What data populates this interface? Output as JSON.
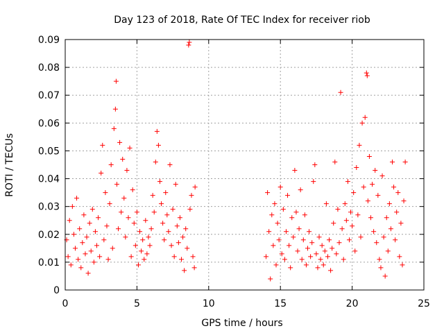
{
  "chart_data": {
    "type": "scatter",
    "title": "Day 123 of 2018, Rate Of TEC Index for receiver riob",
    "xlabel": "GPS time / hours",
    "ylabel": "ROTI / TECUs",
    "xlim": [
      0,
      25
    ],
    "ylim": [
      0,
      0.09
    ],
    "x_ticks": [
      0,
      5,
      10,
      15,
      20,
      25
    ],
    "y_ticks": [
      0,
      0.01,
      0.02,
      0.03,
      0.04,
      0.05,
      0.06,
      0.07,
      0.08,
      0.09
    ],
    "x_tick_labels": [
      "0",
      "5",
      "10",
      "15",
      "20",
      "25"
    ],
    "y_tick_labels": [
      "0",
      "0.01",
      "0.02",
      "0.03",
      "0.04",
      "0.05",
      "0.06",
      "0.07",
      "0.08",
      "0.09"
    ],
    "grid": true,
    "marker": "+",
    "color": "#ff0000",
    "series": [
      {
        "name": "ROTI",
        "points": [
          [
            0.1,
            0.018
          ],
          [
            0.2,
            0.012
          ],
          [
            0.3,
            0.025
          ],
          [
            0.4,
            0.009
          ],
          [
            0.5,
            0.03
          ],
          [
            0.6,
            0.02
          ],
          [
            0.7,
            0.015
          ],
          [
            0.8,
            0.033
          ],
          [
            0.9,
            0.011
          ],
          [
            1.0,
            0.022
          ],
          [
            1.1,
            0.008
          ],
          [
            1.2,
            0.017
          ],
          [
            1.3,
            0.027
          ],
          [
            1.4,
            0.013
          ],
          [
            1.5,
            0.019
          ],
          [
            1.6,
            0.006
          ],
          [
            1.7,
            0.024
          ],
          [
            1.8,
            0.014
          ],
          [
            1.9,
            0.029
          ],
          [
            2.0,
            0.01
          ],
          [
            2.1,
            0.021
          ],
          [
            2.2,
            0.016
          ],
          [
            2.3,
            0.026
          ],
          [
            2.4,
            0.012
          ],
          [
            2.5,
            0.042
          ],
          [
            2.6,
            0.052
          ],
          [
            2.7,
            0.018
          ],
          [
            2.8,
            0.035
          ],
          [
            2.9,
            0.023
          ],
          [
            3.0,
            0.011
          ],
          [
            3.1,
            0.031
          ],
          [
            3.2,
            0.045
          ],
          [
            3.3,
            0.015
          ],
          [
            3.4,
            0.058
          ],
          [
            3.5,
            0.065
          ],
          [
            3.55,
            0.075
          ],
          [
            3.6,
            0.038
          ],
          [
            3.7,
            0.022
          ],
          [
            3.8,
            0.053
          ],
          [
            3.9,
            0.028
          ],
          [
            4.0,
            0.047
          ],
          [
            4.1,
            0.033
          ],
          [
            4.2,
            0.019
          ],
          [
            4.3,
            0.043
          ],
          [
            4.4,
            0.026
          ],
          [
            4.5,
            0.051
          ],
          [
            4.6,
            0.012
          ],
          [
            4.7,
            0.036
          ],
          [
            4.8,
            0.024
          ],
          [
            4.9,
            0.016
          ],
          [
            5.0,
            0.028
          ],
          [
            5.1,
            0.009
          ],
          [
            5.2,
            0.021
          ],
          [
            5.3,
            0.014
          ],
          [
            5.4,
            0.018
          ],
          [
            5.5,
            0.011
          ],
          [
            5.6,
            0.025
          ],
          [
            5.7,
            0.013
          ],
          [
            5.8,
            0.019
          ],
          [
            5.9,
            0.016
          ],
          [
            6.0,
            0.022
          ],
          [
            6.1,
            0.034
          ],
          [
            6.2,
            0.028
          ],
          [
            6.3,
            0.046
          ],
          [
            6.4,
            0.057
          ],
          [
            6.5,
            0.052
          ],
          [
            6.6,
            0.039
          ],
          [
            6.7,
            0.031
          ],
          [
            6.8,
            0.024
          ],
          [
            6.9,
            0.018
          ],
          [
            7.0,
            0.035
          ],
          [
            7.1,
            0.027
          ],
          [
            7.2,
            0.021
          ],
          [
            7.3,
            0.045
          ],
          [
            7.4,
            0.016
          ],
          [
            7.5,
            0.029
          ],
          [
            7.6,
            0.012
          ],
          [
            7.7,
            0.038
          ],
          [
            7.8,
            0.023
          ],
          [
            7.9,
            0.017
          ],
          [
            8.0,
            0.026
          ],
          [
            8.1,
            0.011
          ],
          [
            8.2,
            0.019
          ],
          [
            8.3,
            0.007
          ],
          [
            8.4,
            0.022
          ],
          [
            8.5,
            0.015
          ],
          [
            8.6,
            0.088
          ],
          [
            8.65,
            0.089
          ],
          [
            8.7,
            0.029
          ],
          [
            8.8,
            0.034
          ],
          [
            8.9,
            0.012
          ],
          [
            9.0,
            0.008
          ],
          [
            9.05,
            0.037
          ],
          [
            14.0,
            0.012
          ],
          [
            14.1,
            0.035
          ],
          [
            14.2,
            0.021
          ],
          [
            14.3,
            0.004
          ],
          [
            14.4,
            0.027
          ],
          [
            14.5,
            0.016
          ],
          [
            14.6,
            0.031
          ],
          [
            14.7,
            0.009
          ],
          [
            14.8,
            0.024
          ],
          [
            14.9,
            0.018
          ],
          [
            15.0,
            0.037
          ],
          [
            15.1,
            0.013
          ],
          [
            15.2,
            0.029
          ],
          [
            15.3,
            0.011
          ],
          [
            15.4,
            0.021
          ],
          [
            15.5,
            0.034
          ],
          [
            15.6,
            0.016
          ],
          [
            15.7,
            0.008
          ],
          [
            15.8,
            0.026
          ],
          [
            15.9,
            0.019
          ],
          [
            16.0,
            0.043
          ],
          [
            16.1,
            0.028
          ],
          [
            16.2,
            0.014
          ],
          [
            16.3,
            0.022
          ],
          [
            16.4,
            0.036
          ],
          [
            16.5,
            0.011
          ],
          [
            16.6,
            0.018
          ],
          [
            16.7,
            0.027
          ],
          [
            16.8,
            0.009
          ],
          [
            16.9,
            0.015
          ],
          [
            17.0,
            0.021
          ],
          [
            17.1,
            0.012
          ],
          [
            17.2,
            0.017
          ],
          [
            17.3,
            0.039
          ],
          [
            17.4,
            0.045
          ],
          [
            17.5,
            0.013
          ],
          [
            17.6,
            0.008
          ],
          [
            17.7,
            0.019
          ],
          [
            17.8,
            0.011
          ],
          [
            17.9,
            0.016
          ],
          [
            18.0,
            0.009
          ],
          [
            18.1,
            0.014
          ],
          [
            18.2,
            0.031
          ],
          [
            18.3,
            0.012
          ],
          [
            18.4,
            0.018
          ],
          [
            18.5,
            0.007
          ],
          [
            18.6,
            0.015
          ],
          [
            18.7,
            0.024
          ],
          [
            18.8,
            0.046
          ],
          [
            18.9,
            0.013
          ],
          [
            19.0,
            0.029
          ],
          [
            19.1,
            0.017
          ],
          [
            19.2,
            0.071
          ],
          [
            19.3,
            0.022
          ],
          [
            19.4,
            0.011
          ],
          [
            19.5,
            0.031
          ],
          [
            19.6,
            0.025
          ],
          [
            19.7,
            0.039
          ],
          [
            19.8,
            0.018
          ],
          [
            19.9,
            0.028
          ],
          [
            20.0,
            0.023
          ],
          [
            20.1,
            0.035
          ],
          [
            20.2,
            0.014
          ],
          [
            20.3,
            0.044
          ],
          [
            20.4,
            0.027
          ],
          [
            20.5,
            0.052
          ],
          [
            20.6,
            0.019
          ],
          [
            20.7,
            0.06
          ],
          [
            20.8,
            0.037
          ],
          [
            20.9,
            0.062
          ],
          [
            21.0,
            0.078
          ],
          [
            21.05,
            0.077
          ],
          [
            21.1,
            0.032
          ],
          [
            21.2,
            0.048
          ],
          [
            21.3,
            0.026
          ],
          [
            21.4,
            0.038
          ],
          [
            21.5,
            0.021
          ],
          [
            21.6,
            0.043
          ],
          [
            21.7,
            0.017
          ],
          [
            21.8,
            0.034
          ],
          [
            21.9,
            0.011
          ],
          [
            22.0,
            0.008
          ],
          [
            22.1,
            0.041
          ],
          [
            22.2,
            0.019
          ],
          [
            22.3,
            0.005
          ],
          [
            22.4,
            0.026
          ],
          [
            22.5,
            0.014
          ],
          [
            22.6,
            0.031
          ],
          [
            22.7,
            0.022
          ],
          [
            22.8,
            0.046
          ],
          [
            22.9,
            0.037
          ],
          [
            23.0,
            0.018
          ],
          [
            23.1,
            0.028
          ],
          [
            23.2,
            0.035
          ],
          [
            23.3,
            0.012
          ],
          [
            23.4,
            0.024
          ],
          [
            23.5,
            0.009
          ],
          [
            23.6,
            0.032
          ],
          [
            23.7,
            0.046
          ]
        ]
      }
    ]
  }
}
